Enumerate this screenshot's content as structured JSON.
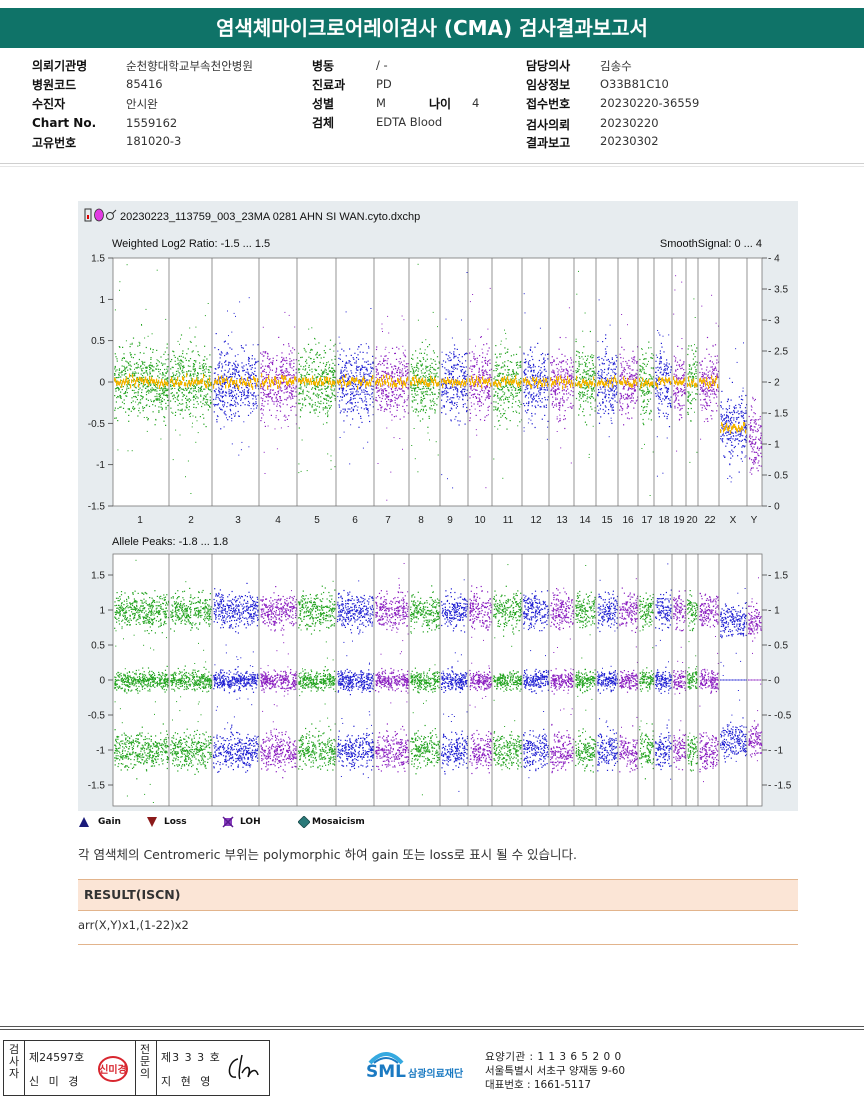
{
  "report_title": "염색체마이크로어레이검사 (CMA) 검사결과보고서",
  "info": {
    "col1": [
      {
        "label": "의뢰기관명",
        "value": "순천향대학교부속천안병원"
      },
      {
        "label": "병원코드",
        "value": "85416"
      },
      {
        "label": "수진자",
        "value": "안시완"
      },
      {
        "label": "Chart No.",
        "value": "1559162"
      },
      {
        "label": "고유번호",
        "value": "181020-3"
      }
    ],
    "col2": [
      {
        "label": "병동",
        "value": "/ -"
      },
      {
        "label": "진료과",
        "value": "PD"
      },
      {
        "label": "성별",
        "value": "M"
      },
      {
        "label": "검체",
        "value": "EDTA Blood"
      }
    ],
    "age": {
      "label": "나이",
      "value": "4"
    },
    "col3": [
      {
        "label": "담당의사",
        "value": "김송수"
      },
      {
        "label": "임상정보",
        "value": "O33B81C10"
      },
      {
        "label": "접수번호",
        "value": "20230220-36559"
      },
      {
        "label": "검사의뢰",
        "value": "20230220"
      },
      {
        "label": "결과보고",
        "value": "20230302"
      }
    ]
  },
  "plot": {
    "file_name": "20230223_113759_003_23MA 0281 AHN SI WAN.cyto.dxchp",
    "top_panel_label": "Weighted Log2 Ratio: -1.5 ... 1.5",
    "top_panel_right_label": "SmoothSignal: 0 ... 4",
    "bottom_panel_label": "Allele Peaks: -1.8 ... 1.8",
    "top_left_ticks": [
      "1.5",
      "1",
      "0.5",
      "0",
      "-0.5",
      "-1",
      "-1.5"
    ],
    "top_right_ticks": [
      "4",
      "3.5",
      "3",
      "2.5",
      "2",
      "1.5",
      "1",
      "0.5",
      "0"
    ],
    "bottom_left_ticks": [
      "1.5",
      "1",
      "0.5",
      "0",
      "-0.5",
      "-1",
      "-1.5"
    ],
    "bottom_right_ticks": [
      "1.5",
      "1",
      "0.5",
      "0",
      "-0.5",
      "-1",
      "-1.5"
    ],
    "chromosome_labels": [
      "1",
      "2",
      "3",
      "4",
      "5",
      "6",
      "7",
      "8",
      "9",
      "10",
      "11",
      "12",
      "13",
      "14",
      "15",
      "16",
      "17",
      "18",
      "19",
      "20",
      "22",
      "X",
      "Y"
    ],
    "colors": {
      "green": "#22a31e",
      "blue": "#1e1ed2",
      "purple": "#8a1ec0",
      "orange": "#f4b400",
      "panel_bg": "#ffffff",
      "wrap_bg": "#e7ecef"
    }
  },
  "legend": [
    {
      "icon": "gain-triangle-icon",
      "label": "Gain"
    },
    {
      "icon": "loss-triangle-icon",
      "label": "Loss"
    },
    {
      "icon": "loh-icon",
      "label": "LOH"
    },
    {
      "icon": "mosaicism-diamond-icon",
      "label": "Mosaicism"
    }
  ],
  "note": "각 염색체의 Centromeric 부위는 polymorphic 하여 gain 또는 loss로 표시 될 수 있습니다.",
  "result": {
    "title": "RESULT(ISCN)",
    "value": "arr(X,Y)x1,(1-22)x2"
  },
  "footer": {
    "examiner_label": "검사자",
    "examiner_no": "제24597호",
    "examiner_name": "신 미 경",
    "specialist_label": "전문의",
    "specialist_no": "제3 3 3 호",
    "specialist_name": "지 현 영",
    "logo": "SML",
    "org_name": "삼광의료재단",
    "agency_no": "요양기관 : 1 1 3 6 5 2 0 0",
    "address": "서울특별시 서초구 양재동 9-60",
    "phone": "대표번호 : 1661-5117"
  }
}
